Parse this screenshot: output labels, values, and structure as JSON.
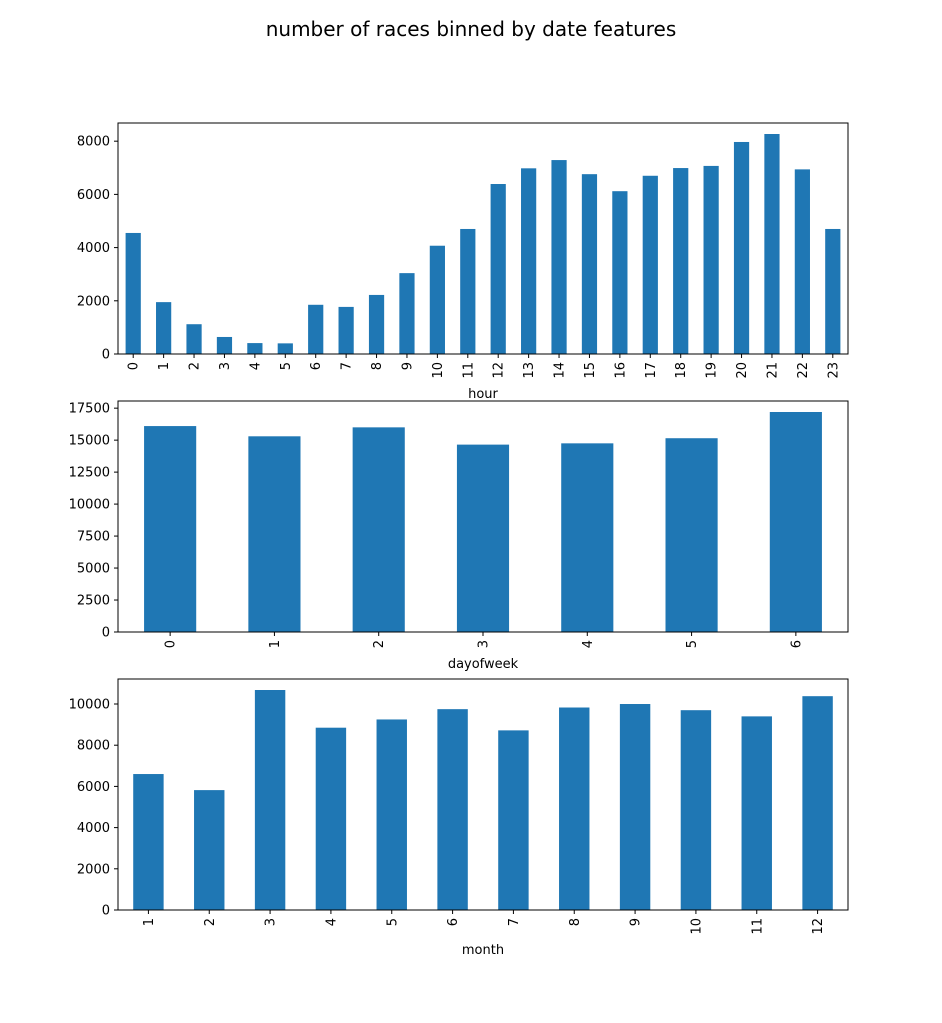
{
  "figure": {
    "title": "number of races binned by date features",
    "bar_color": "#1f77b4"
  },
  "chart_data": [
    {
      "type": "bar",
      "xlabel": "hour",
      "ylabel": "",
      "categories": [
        "0",
        "1",
        "2",
        "3",
        "4",
        "5",
        "6",
        "7",
        "8",
        "9",
        "10",
        "11",
        "12",
        "13",
        "14",
        "15",
        "16",
        "17",
        "18",
        "19",
        "20",
        "21",
        "22",
        "23"
      ],
      "values": [
        4550,
        1950,
        1120,
        640,
        410,
        400,
        1850,
        1770,
        2220,
        3040,
        4070,
        4700,
        6390,
        6980,
        7290,
        6760,
        6120,
        6700,
        6990,
        7070,
        7970,
        8270,
        6940,
        4700
      ],
      "ylim": [
        0,
        8683.5
      ],
      "yticks": [
        0,
        2000,
        4000,
        6000,
        8000
      ],
      "tick_rotation": "vertical",
      "grid": false,
      "legend": "none"
    },
    {
      "type": "bar",
      "xlabel": "dayofweek",
      "ylabel": "",
      "categories": [
        "0",
        "1",
        "2",
        "3",
        "4",
        "5",
        "6"
      ],
      "values": [
        16100,
        15300,
        16000,
        14650,
        14750,
        15150,
        17200
      ],
      "ylim": [
        0,
        18060
      ],
      "yticks": [
        0,
        2500,
        5000,
        7500,
        10000,
        12500,
        15000,
        17500
      ],
      "tick_rotation": "vertical",
      "grid": false,
      "legend": "none"
    },
    {
      "type": "bar",
      "xlabel": "month",
      "ylabel": "",
      "categories": [
        "1",
        "2",
        "3",
        "4",
        "5",
        "6",
        "7",
        "8",
        "9",
        "10",
        "11",
        "12"
      ],
      "values": [
        6600,
        5820,
        10680,
        8850,
        9250,
        9750,
        8720,
        9830,
        10000,
        9700,
        9400,
        10380
      ],
      "ylim": [
        0,
        11214
      ],
      "yticks": [
        0,
        2000,
        4000,
        6000,
        8000,
        10000
      ],
      "tick_rotation": "vertical",
      "grid": false,
      "legend": "none"
    }
  ]
}
